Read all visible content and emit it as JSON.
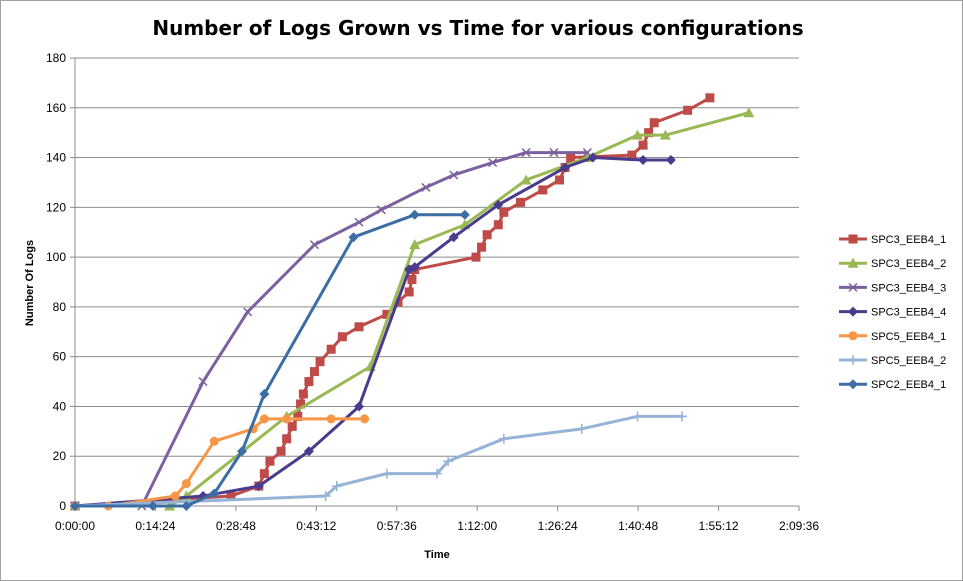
{
  "chart_data": {
    "type": "line",
    "title": "Number of Logs Grown vs Time for various configurations",
    "xlabel": "Time",
    "ylabel": "Number Of Logs",
    "x_unit": "minutes",
    "xlim": [
      0,
      130
    ],
    "ylim": [
      0,
      180
    ],
    "x_ticks": [
      "0:00:00",
      "0:14:24",
      "0:28:48",
      "0:43:12",
      "0:57:36",
      "1:12:00",
      "1:26:24",
      "1:40:48",
      "1:55:12",
      "2:09:36"
    ],
    "y_ticks": [
      "0",
      "20",
      "40",
      "60",
      "80",
      "100",
      "120",
      "140",
      "160",
      "180"
    ],
    "grid": "horizontal",
    "legend_position": "right",
    "series": [
      {
        "name": "SPC3_EEB4_1",
        "color": "#be4b48",
        "marker": "square",
        "x": [
          0,
          28,
          33,
          34,
          35,
          37,
          38,
          39,
          40,
          40.5,
          41,
          42,
          43,
          44,
          46,
          48,
          51,
          56,
          58,
          60,
          60.5,
          61,
          72,
          73,
          74,
          76,
          77,
          80,
          84,
          87,
          88,
          89,
          100,
          102,
          103,
          104,
          110,
          114
        ],
        "y": [
          0,
          4,
          8,
          13,
          18,
          22,
          27,
          32,
          36,
          41,
          45,
          50,
          54,
          58,
          63,
          68,
          72,
          77,
          82,
          86,
          91,
          95,
          100,
          104,
          109,
          113,
          118,
          122,
          127,
          131,
          136,
          140,
          141,
          145,
          150,
          154,
          159,
          164
        ]
      },
      {
        "name": "SPC3_EEB4_2",
        "color": "#98b954",
        "marker": "triangle",
        "x": [
          0,
          17,
          20,
          38,
          53,
          61,
          70,
          81,
          92,
          101,
          106,
          121
        ],
        "y": [
          0,
          0,
          4,
          36,
          56,
          105,
          113,
          131,
          140,
          149,
          149,
          158
        ]
      },
      {
        "name": "SPC3_EEB4_3",
        "color": "#7d60a0",
        "marker": "x",
        "x": [
          0,
          12,
          23,
          31,
          43,
          51,
          55,
          63,
          68,
          75,
          81,
          86,
          92
        ],
        "y": [
          0,
          0,
          50,
          78,
          105,
          114,
          119,
          128,
          133,
          138,
          142,
          142,
          142
        ]
      },
      {
        "name": "SPC3_EEB4_4",
        "color": "#4a3b8c",
        "marker": "diamond",
        "x": [
          0,
          23,
          33,
          42,
          51,
          60,
          61,
          68,
          76,
          88,
          93,
          102,
          107
        ],
        "y": [
          0,
          4,
          8,
          22,
          40,
          95,
          96,
          108,
          121,
          136,
          140,
          139,
          139
        ]
      },
      {
        "name": "SPC5_EEB4_1",
        "color": "#f79646",
        "marker": "circle",
        "x": [
          0,
          6,
          18,
          20,
          25,
          32,
          34,
          38,
          46,
          52
        ],
        "y": [
          0,
          0,
          4,
          9,
          26,
          31,
          35,
          35,
          35,
          35
        ]
      },
      {
        "name": "SPC5_EEB4_2",
        "color": "#95b3d7",
        "marker": "plus",
        "x": [
          0,
          45,
          47,
          56,
          65,
          67,
          77,
          91,
          101,
          109
        ],
        "y": [
          0,
          4,
          8,
          13,
          13,
          18,
          27,
          31,
          36,
          36
        ]
      },
      {
        "name": "SPC2_EEB4_1",
        "color": "#3c6ea5",
        "marker": "diamond",
        "x": [
          0,
          14,
          20,
          25,
          30,
          34,
          50,
          61,
          70
        ],
        "y": [
          0,
          0,
          0,
          5,
          22,
          45,
          108,
          117,
          117
        ]
      }
    ]
  }
}
